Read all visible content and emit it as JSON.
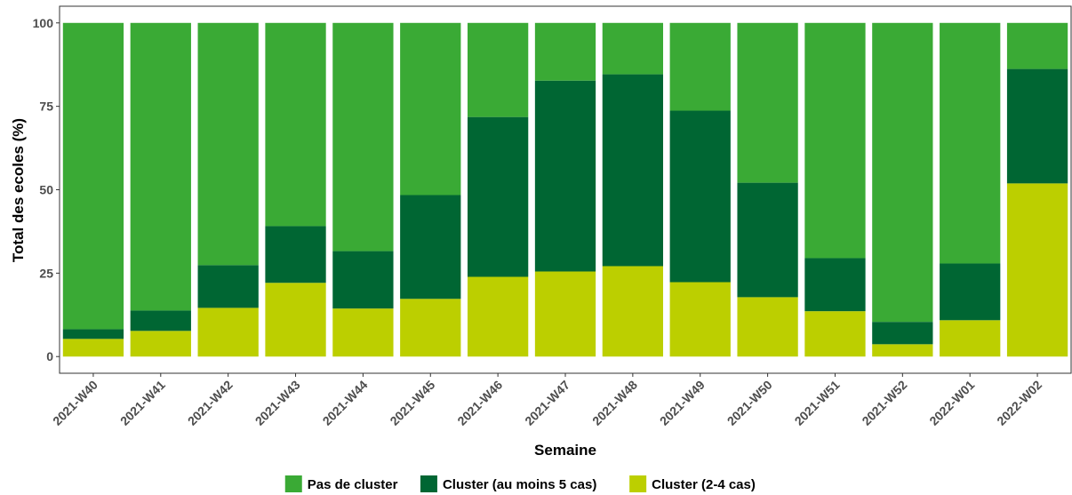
{
  "chart_data": {
    "type": "stacked_bar",
    "x_label": "Semaine",
    "y_label": "Total des ecoles (%)",
    "categories": [
      "2021-W40",
      "2021-W41",
      "2021-W42",
      "2021-W43",
      "2021-W44",
      "2021-W45",
      "2021-W46",
      "2021-W47",
      "2021-W48",
      "2021-W49",
      "2021-W50",
      "2021-W51",
      "2021-W52",
      "2022-W01",
      "2022-W02"
    ],
    "series": [
      {
        "name": "Pas de cluster",
        "color": "#3aaa35",
        "values": [
          91.8,
          86.2,
          72.6,
          60.9,
          68.4,
          51.6,
          28.2,
          17.3,
          15.4,
          26.3,
          47.9,
          70.5,
          89.6,
          72.1,
          13.8
        ]
      },
      {
        "name": "Cluster (au moins 5 cas)",
        "color": "#006633",
        "values": [
          2.9,
          6.1,
          12.8,
          17.0,
          17.2,
          31.1,
          47.9,
          57.2,
          57.5,
          51.4,
          34.3,
          15.9,
          6.7,
          17.0,
          34.3
        ]
      },
      {
        "name": "Cluster (2-4 cas)",
        "color": "#bccf00",
        "values": [
          5.3,
          7.7,
          14.6,
          22.1,
          14.4,
          17.3,
          23.9,
          25.5,
          27.1,
          22.3,
          17.8,
          13.6,
          3.7,
          10.9,
          51.9
        ]
      }
    ],
    "ylim": [
      -5,
      105
    ],
    "yticks": [
      0,
      25,
      50,
      75,
      100
    ],
    "grid": false,
    "legend": "bottom"
  }
}
